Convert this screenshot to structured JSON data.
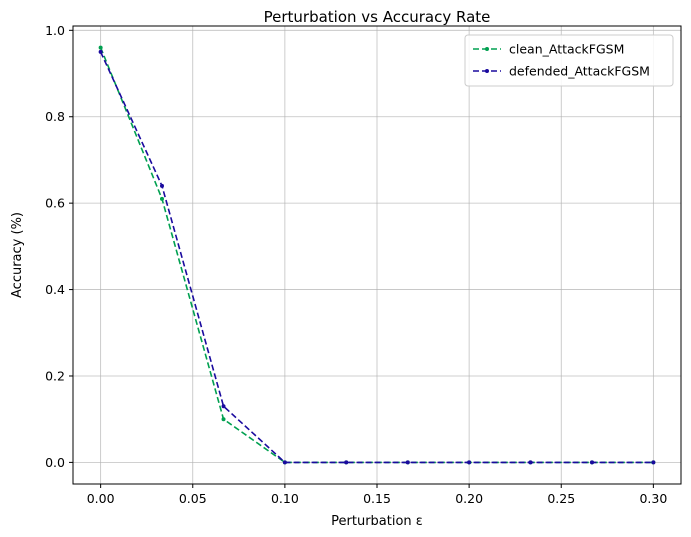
{
  "chart_data": {
    "type": "line",
    "title": "Perturbation vs Accuracy Rate",
    "xlabel": "Perturbation ε",
    "ylabel": "Accuracy (%)",
    "xlim": [
      -0.015,
      0.315
    ],
    "ylim": [
      -0.05,
      1.01
    ],
    "xticks": [
      0.0,
      0.05,
      0.1,
      0.15,
      0.2,
      0.25,
      0.3
    ],
    "xtick_labels": [
      "0.00",
      "0.05",
      "0.10",
      "0.15",
      "0.20",
      "0.25",
      "0.30"
    ],
    "yticks": [
      0.0,
      0.2,
      0.4,
      0.6,
      0.8,
      1.0
    ],
    "ytick_labels": [
      "0.0",
      "0.2",
      "0.4",
      "0.6",
      "0.8",
      "1.0"
    ],
    "grid": true,
    "legend_position": "top-right",
    "x": [
      0.0,
      0.0333,
      0.0667,
      0.1,
      0.1333,
      0.1667,
      0.2,
      0.2333,
      0.2667,
      0.3
    ],
    "series": [
      {
        "name": "clean_AttackFGSM",
        "color": "#00a050",
        "style": "dashed",
        "marker": "dot",
        "values": [
          0.96,
          0.61,
          0.1,
          0.0,
          0.0,
          0.0,
          0.0,
          0.0,
          0.0,
          0.0
        ]
      },
      {
        "name": "defended_AttackFGSM",
        "color": "#1a0a9e",
        "style": "dashed",
        "marker": "dot",
        "values": [
          0.95,
          0.64,
          0.13,
          0.0,
          0.0,
          0.0,
          0.0,
          0.0,
          0.0,
          0.0
        ]
      }
    ]
  }
}
